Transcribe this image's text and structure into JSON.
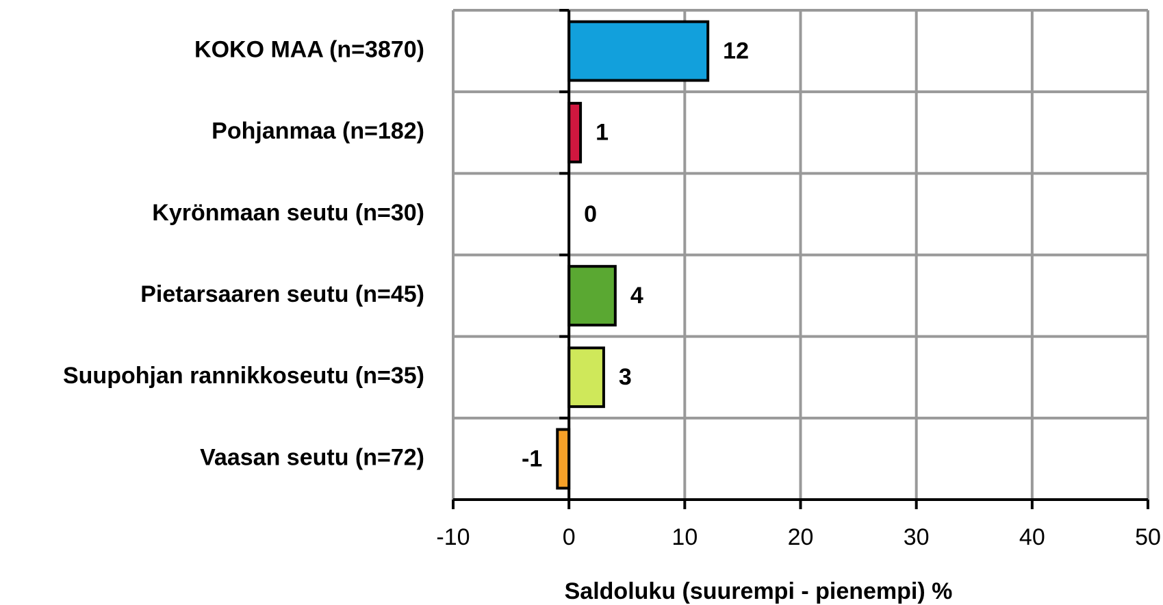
{
  "chart_data": {
    "type": "hbar",
    "categories": [
      "KOKO MAA (n=3870)",
      "Pohjanmaa (n=182)",
      "Kyrönmaan seutu (n=30)",
      "Pietarsaaren seutu (n=45)",
      "Suupohjan rannikkoseutu (n=35)",
      "Vaasan seutu (n=72)"
    ],
    "values": [
      12,
      1,
      0,
      4,
      3,
      -1
    ],
    "colors": [
      "#12a0dc",
      "#d0173f",
      "#8e6bbf",
      "#5aa832",
      "#cfe85a",
      "#f7a128"
    ],
    "xlabel": "Saldoluku (suurempi - pienempi) %",
    "xlim": [
      -10,
      50
    ],
    "xticks": [
      -10,
      0,
      10,
      20,
      30,
      40,
      50
    ],
    "grid": true
  }
}
